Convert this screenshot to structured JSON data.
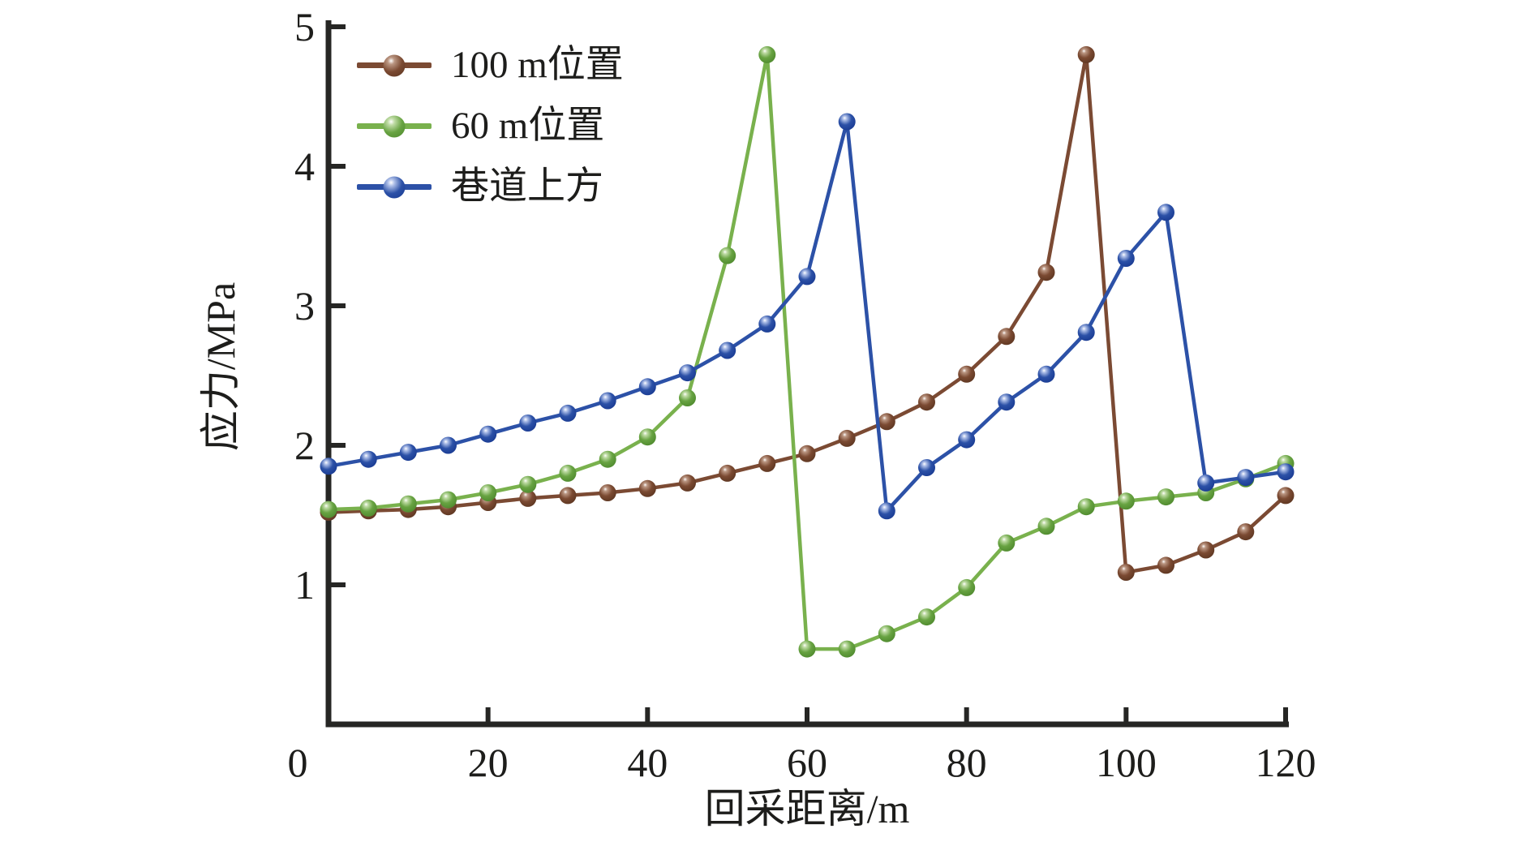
{
  "figure": {
    "background": "#ffffff",
    "text_color": "#1d1d1b",
    "axis_color": "#262624"
  },
  "legend": {
    "items": [
      {
        "label": "100 m位置",
        "line_color": "#7b4a33",
        "ball_main": "#7b4a32",
        "ball_dark": "#5a341f",
        "ball_light": "#bb9783"
      },
      {
        "label": "60 m位置",
        "line_color": "#79b14d",
        "ball_main": "#68a342",
        "ball_dark": "#4c872c",
        "ball_light": "#c0dca6"
      },
      {
        "label": "巷道上方",
        "line_color": "#2c51a7",
        "ball_main": "#2c51a7",
        "ball_dark": "#173890",
        "ball_light": "#aebfe8"
      }
    ]
  },
  "chart_data": {
    "type": "line",
    "title": "",
    "xlabel": "回采距离/m",
    "ylabel": "应力/MPa",
    "xlim": [
      0,
      120
    ],
    "ylim": [
      0,
      5
    ],
    "grid": false,
    "legend_position": "top-left",
    "x_ticks": [
      0,
      20,
      40,
      60,
      80,
      100,
      120
    ],
    "y_ticks": [
      1,
      2,
      3,
      4,
      5
    ],
    "x": [
      0,
      5,
      10,
      15,
      20,
      25,
      30,
      35,
      40,
      45,
      50,
      55,
      60,
      65,
      70,
      75,
      80,
      85,
      90,
      95,
      100,
      105,
      110,
      115,
      120
    ],
    "series": [
      {
        "name": "100 m位置",
        "line_color": "#7b4a33",
        "ball_main": "#7b4a32",
        "ball_dark": "#5a341f",
        "ball_light": "#bb9783",
        "values": [
          1.52,
          1.53,
          1.54,
          1.56,
          1.59,
          1.62,
          1.64,
          1.66,
          1.69,
          1.73,
          1.8,
          1.87,
          1.94,
          2.05,
          2.17,
          2.31,
          2.51,
          2.78,
          3.24,
          4.8,
          1.09,
          1.14,
          1.25,
          1.38,
          1.64
        ]
      },
      {
        "name": "60 m位置",
        "line_color": "#79b14d",
        "ball_main": "#68a342",
        "ball_dark": "#4c872c",
        "ball_light": "#c0dca6",
        "values": [
          1.54,
          1.55,
          1.58,
          1.61,
          1.66,
          1.72,
          1.8,
          1.9,
          2.06,
          2.34,
          3.36,
          4.8,
          0.54,
          0.54,
          0.65,
          0.77,
          0.98,
          1.3,
          1.42,
          1.56,
          1.6,
          1.63,
          1.66,
          1.76,
          1.87
        ]
      },
      {
        "name": "巷道上方",
        "line_color": "#2c51a7",
        "ball_main": "#2c51a7",
        "ball_dark": "#173890",
        "ball_light": "#aebfe8",
        "values": [
          1.85,
          1.9,
          1.95,
          2.0,
          2.08,
          2.16,
          2.23,
          2.32,
          2.42,
          2.52,
          2.68,
          2.87,
          3.21,
          4.32,
          1.53,
          1.84,
          2.04,
          2.31,
          2.51,
          2.81,
          3.34,
          3.67,
          1.73,
          1.77,
          1.81
        ]
      }
    ]
  }
}
